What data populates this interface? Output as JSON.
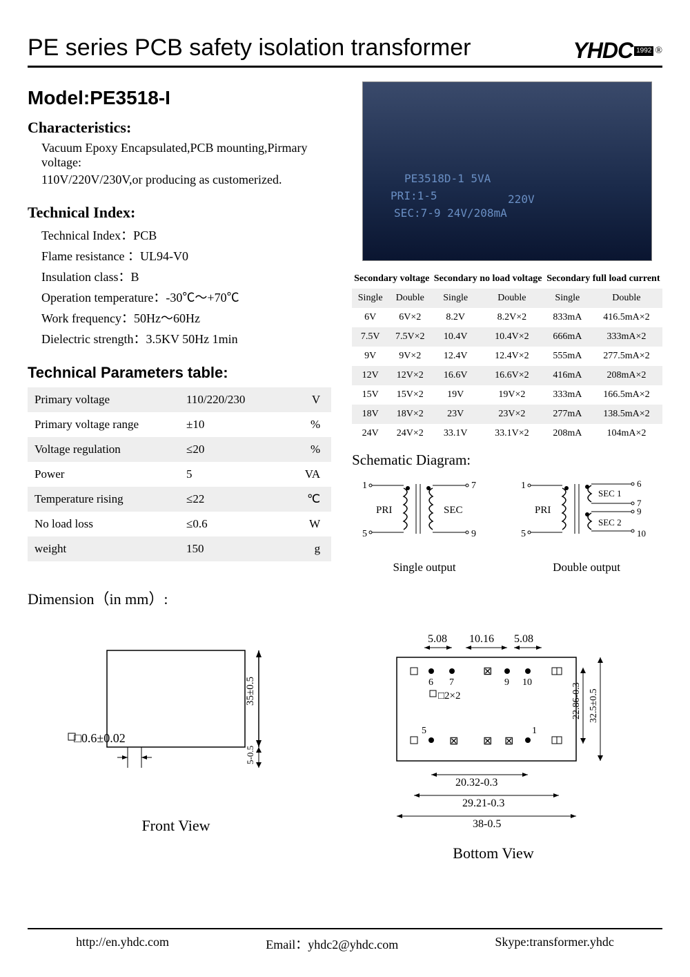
{
  "header": {
    "title": "PE series PCB safety isolation transformer",
    "logo_text": "YHDC",
    "logo_year": "1992",
    "reg": "®"
  },
  "model": "Model:PE3518-I",
  "characteristics": {
    "heading": "Characteristics:",
    "lines": [
      "Vacuum Epoxy Encapsulated,PCB mounting,Pirmary voltage:",
      "110V/220V/230V,or producing as customerized."
    ]
  },
  "tech_index": {
    "heading": "Technical Index:",
    "lines": [
      "Technical Index：PCB",
      "Flame resistance ：UL94-V0",
      "Insulation class：B",
      "Operation temperature：-30℃～+70℃",
      "Work frequency：50Hz～60Hz",
      "Dielectric strength：3.5KV 50Hz 1min"
    ]
  },
  "params": {
    "heading": "Technical Parameters table:",
    "rows": [
      {
        "label": "Primary voltage",
        "value": "110/220/230",
        "unit": "V"
      },
      {
        "label": "Primary voltage range",
        "value": "±10",
        "unit": "%"
      },
      {
        "label": "Voltage regulation",
        "value": "≤20",
        "unit": "%"
      },
      {
        "label": "Power",
        "value": "5",
        "unit": "VA"
      },
      {
        "label": "Temperature rising",
        "value": "≤22",
        "unit": "℃"
      },
      {
        "label": "No load loss",
        "value": "≤0.6",
        "unit": "W"
      },
      {
        "label": "weight",
        "value": "150",
        "unit": "g"
      }
    ]
  },
  "secondary": {
    "headers": [
      "Secondary voltage",
      "Secondary no load voltage",
      "Secondary full load current"
    ],
    "sub": [
      "Single",
      "Double",
      "Single",
      "Double",
      "Single",
      "Double"
    ],
    "rows": [
      [
        "6V",
        "6V×2",
        "8.2V",
        "8.2V×2",
        "833mA",
        "416.5mA×2"
      ],
      [
        "7.5V",
        "7.5V×2",
        "10.4V",
        "10.4V×2",
        "666mA",
        "333mA×2"
      ],
      [
        "9V",
        "9V×2",
        "12.4V",
        "12.4V×2",
        "555mA",
        "277.5mA×2"
      ],
      [
        "12V",
        "12V×2",
        "16.6V",
        "16.6V×2",
        "416mA",
        "208mA×2"
      ],
      [
        "15V",
        "15V×2",
        "19V",
        "19V×2",
        "333mA",
        "166.5mA×2"
      ],
      [
        "18V",
        "18V×2",
        "23V",
        "23V×2",
        "277mA",
        "138.5mA×2"
      ],
      [
        "24V",
        "24V×2",
        "33.1V",
        "33.1V×2",
        "208mA",
        "104mA×2"
      ]
    ]
  },
  "schematic": {
    "heading": "Schematic Diagram:",
    "single_label": "Single output",
    "double_label": "Double output",
    "pri": "PRI",
    "sec": "SEC",
    "sec1": "SEC 1",
    "sec2": "SEC 2",
    "pins_single": {
      "p1": "1",
      "p5": "5",
      "p7": "7",
      "p9": "9"
    },
    "pins_double": {
      "p1": "1",
      "p5": "5",
      "p6": "6",
      "p7": "7",
      "p9": "9",
      "p10": "10"
    }
  },
  "dimension": {
    "heading": "Dimension（in mm）:",
    "front": {
      "caption": "Front View",
      "h": "35±0.5",
      "pin_h": "5-0.5",
      "pin_sq": "□0.6±0.02"
    },
    "bottom": {
      "caption": "Bottom View",
      "d1": "5.08",
      "d2": "10.16",
      "d3": "5.08",
      "w1": "20.32-0.3",
      "w2": "29.21-0.3",
      "w3": "38-0.5",
      "h1": "22.86-0.3",
      "h2": "32.5±0.5",
      "hole": "□2×2",
      "pins": [
        "6",
        "7",
        "9",
        "10",
        "5",
        "1"
      ]
    }
  },
  "photo": {
    "l1": "PE3518D-1 5VA",
    "l2": "PRI:1-5",
    "l3": "220V",
    "l4": "SEC:7-9 24V/208mA"
  },
  "footer": {
    "url": "http://en.yhdc.com",
    "email": "Email：yhdc2@yhdc.com",
    "skype": "Skype:transformer.yhdc"
  }
}
